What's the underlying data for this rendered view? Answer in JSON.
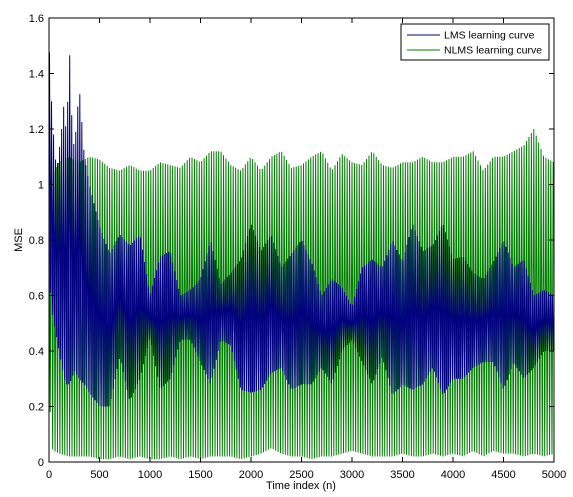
{
  "chart_data": {
    "type": "line",
    "xlabel": "Time index (n)",
    "ylabel": "MSE",
    "xlim": [
      0,
      5000
    ],
    "ylim": [
      0,
      1.6
    ],
    "x_ticks": [
      0,
      500,
      1000,
      1500,
      2000,
      2500,
      3000,
      3500,
      4000,
      4500,
      5000
    ],
    "x_tick_labels": [
      "0",
      "500",
      "1000",
      "1500",
      "2000",
      "2500",
      "3000",
      "3500",
      "4000",
      "4500",
      "5000"
    ],
    "y_ticks": [
      0,
      0.2,
      0.4,
      0.6,
      0.8,
      1,
      1.2,
      1.4,
      1.6
    ],
    "y_tick_labels": [
      "0",
      "0.2",
      "0.4",
      "0.6",
      "0.8",
      "1",
      "1.2",
      "1.4",
      "1.6"
    ],
    "grid": false,
    "legend_position": "top-right",
    "series": [
      {
        "name": "LMS learning curve",
        "color": "#00007f",
        "x": [
          0,
          25,
          50,
          75,
          100,
          125,
          150,
          175,
          200,
          225,
          250,
          300,
          350,
          400,
          500,
          600,
          700,
          800,
          900,
          1000,
          1100,
          1200,
          1300,
          1400,
          1500,
          1600,
          1700,
          1800,
          1900,
          2000,
          2100,
          2200,
          2300,
          2400,
          2500,
          2600,
          2700,
          2800,
          2900,
          3000,
          3100,
          3200,
          3300,
          3400,
          3500,
          3600,
          3700,
          3800,
          3900,
          4000,
          4100,
          4200,
          4300,
          4400,
          4500,
          4600,
          4700,
          4800,
          4900,
          5000
        ],
        "upper": [
          1.52,
          1.3,
          1.15,
          1.05,
          1.12,
          1.2,
          1.3,
          1.15,
          1.52,
          1.25,
          1.12,
          1.35,
          1.1,
          1.0,
          0.85,
          0.75,
          0.82,
          0.78,
          0.82,
          0.6,
          0.74,
          0.76,
          0.6,
          0.62,
          0.66,
          0.8,
          0.64,
          0.68,
          0.73,
          0.86,
          0.76,
          0.82,
          0.7,
          0.75,
          0.8,
          0.72,
          0.6,
          0.66,
          0.63,
          0.56,
          0.7,
          0.73,
          0.7,
          0.8,
          0.72,
          0.86,
          0.76,
          0.78,
          0.86,
          0.73,
          0.74,
          0.68,
          0.66,
          0.72,
          0.8,
          0.7,
          0.73,
          0.6,
          0.62,
          0.6
        ],
        "lower": [
          0.7,
          0.55,
          0.5,
          0.45,
          0.4,
          0.35,
          0.3,
          0.28,
          0.28,
          0.3,
          0.33,
          0.3,
          0.28,
          0.25,
          0.2,
          0.2,
          0.38,
          0.22,
          0.3,
          0.45,
          0.26,
          0.3,
          0.44,
          0.44,
          0.36,
          0.28,
          0.44,
          0.42,
          0.26,
          0.25,
          0.26,
          0.32,
          0.34,
          0.26,
          0.28,
          0.28,
          0.34,
          0.28,
          0.4,
          0.44,
          0.36,
          0.28,
          0.38,
          0.24,
          0.28,
          0.26,
          0.28,
          0.34,
          0.24,
          0.3,
          0.3,
          0.34,
          0.36,
          0.36,
          0.26,
          0.36,
          0.3,
          0.34,
          0.4,
          0.4
        ]
      },
      {
        "name": "NLMS learning curve",
        "color": "#007f00",
        "x": [
          0,
          25,
          50,
          100,
          200,
          300,
          400,
          500,
          600,
          700,
          800,
          900,
          1000,
          1100,
          1200,
          1300,
          1400,
          1500,
          1600,
          1700,
          1800,
          1900,
          2000,
          2100,
          2200,
          2300,
          2400,
          2500,
          2600,
          2700,
          2800,
          2900,
          3000,
          3100,
          3200,
          3300,
          3400,
          3500,
          3600,
          3700,
          3800,
          3900,
          4000,
          4100,
          4200,
          4300,
          4400,
          4500,
          4600,
          4700,
          4800,
          4900,
          5000
        ],
        "upper": [
          1.15,
          1.08,
          1.05,
          1.08,
          1.1,
          1.08,
          1.1,
          1.09,
          1.06,
          1.05,
          1.07,
          1.05,
          1.05,
          1.08,
          1.07,
          1.06,
          1.1,
          1.08,
          1.12,
          1.12,
          1.07,
          1.05,
          1.1,
          1.05,
          1.1,
          1.12,
          1.06,
          1.07,
          1.1,
          1.12,
          1.05,
          1.11,
          1.08,
          1.07,
          1.12,
          1.07,
          1.06,
          1.08,
          1.08,
          1.1,
          1.08,
          1.08,
          1.1,
          1.1,
          1.12,
          1.05,
          1.1,
          1.1,
          1.12,
          1.14,
          1.2,
          1.1,
          1.08
        ],
        "lower": [
          0.3,
          0.05,
          0.04,
          0.03,
          0.02,
          0.02,
          0.02,
          0.01,
          0.01,
          0.02,
          0.01,
          0.02,
          0.01,
          0.01,
          0.02,
          0.01,
          0.02,
          0.01,
          0.02,
          0.02,
          0.02,
          0.01,
          0.02,
          0.03,
          0.05,
          0.03,
          0.02,
          0.02,
          0.01,
          0.02,
          0.02,
          0.03,
          0.04,
          0.03,
          0.02,
          0.02,
          0.02,
          0.03,
          0.02,
          0.02,
          0.03,
          0.02,
          0.03,
          0.02,
          0.04,
          0.02,
          0.04,
          0.03,
          0.03,
          0.02,
          0.03,
          0.02,
          0.03
        ]
      }
    ]
  }
}
